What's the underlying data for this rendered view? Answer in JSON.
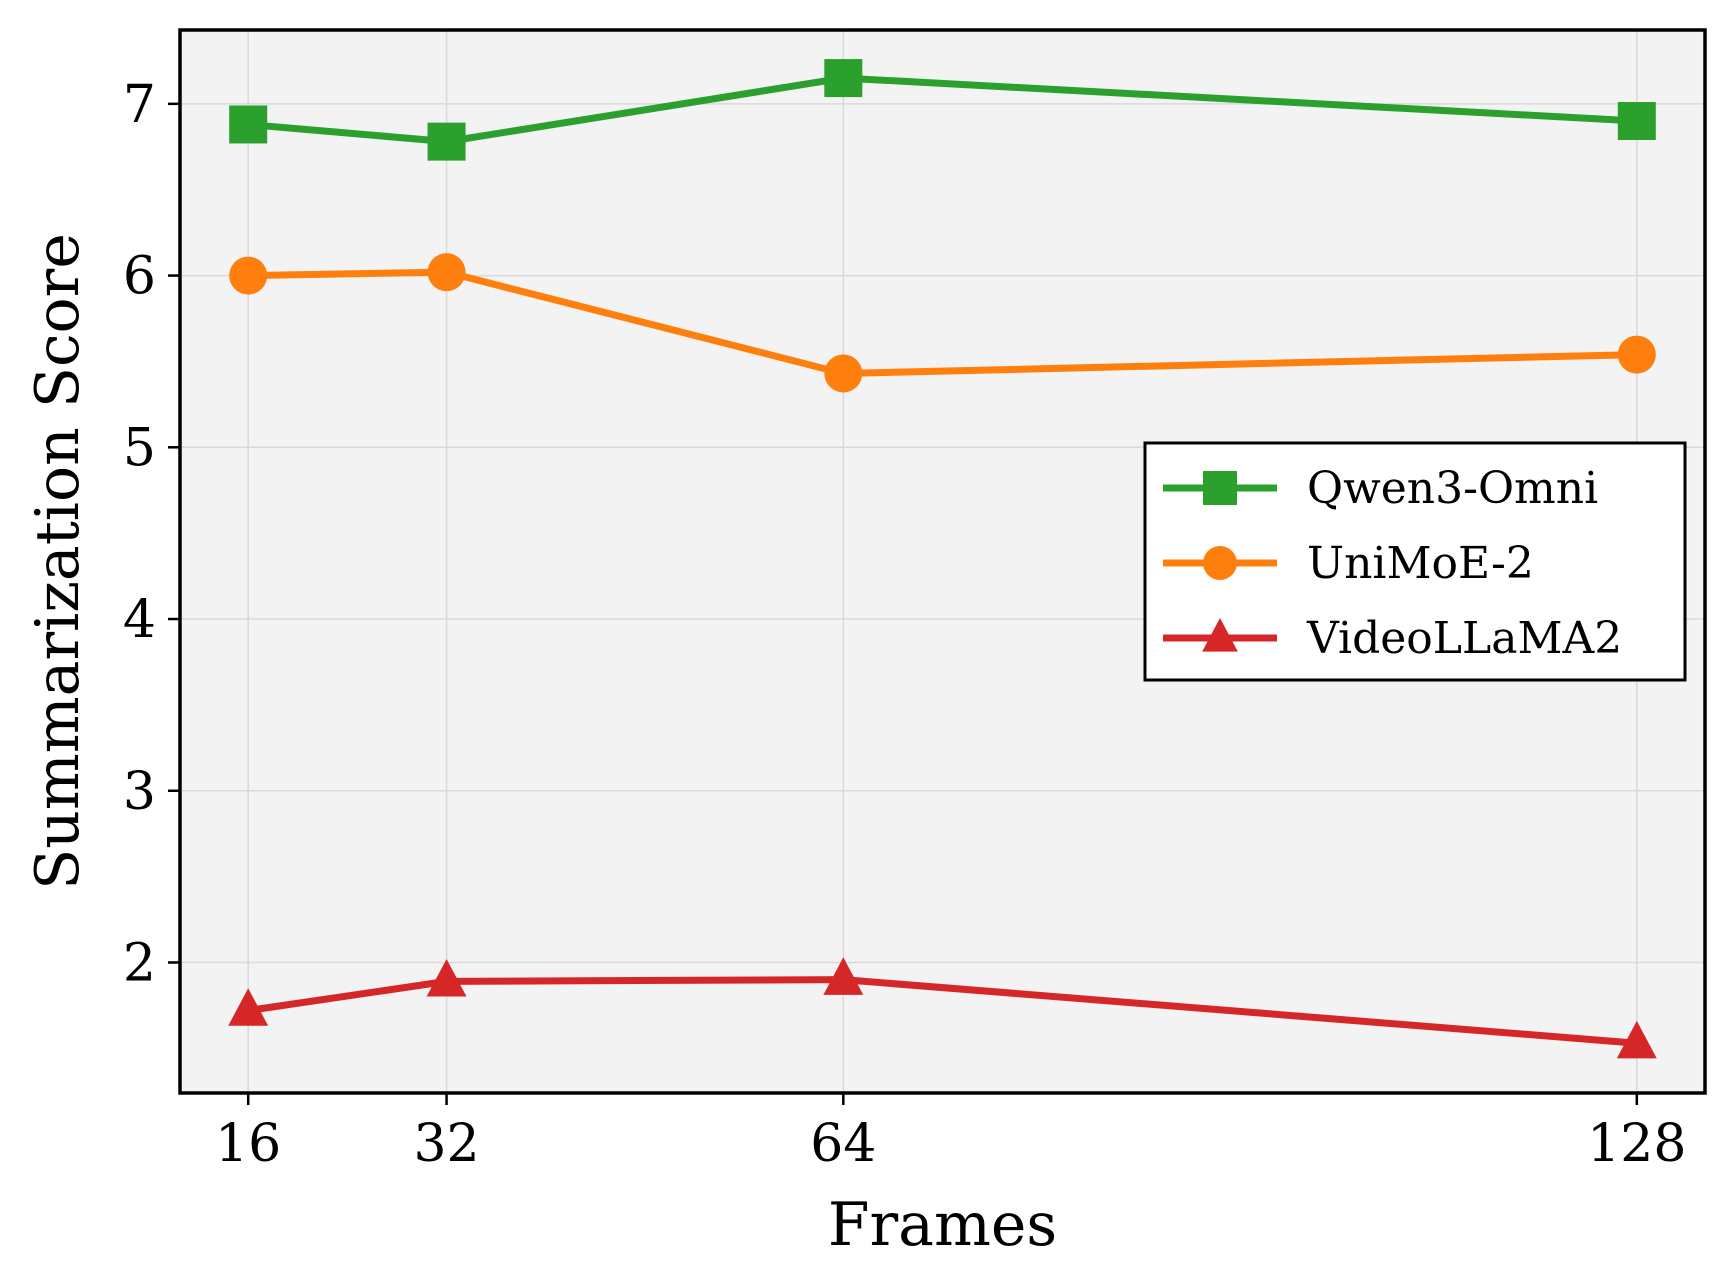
{
  "chart_data": {
    "type": "line",
    "title": "",
    "xlabel": "Frames",
    "ylabel": "Summarization Score",
    "x": [
      16,
      32,
      64,
      128
    ],
    "x_tick_labels": [
      "16",
      "32",
      "64",
      "128"
    ],
    "xlim": [
      10.5,
      133.5
    ],
    "y_ticks": [
      2,
      3,
      4,
      5,
      6,
      7
    ],
    "y_tick_labels": [
      "2",
      "3",
      "4",
      "5",
      "6",
      "7"
    ],
    "ylim": [
      1.24,
      7.43
    ],
    "grid": true,
    "legend_position": "center-right",
    "series": [
      {
        "name": "Qwen3-Omni",
        "values": [
          6.88,
          6.78,
          7.15,
          6.9
        ],
        "color": "#2ca02c",
        "marker": "square"
      },
      {
        "name": "UniMoE-2",
        "values": [
          6.0,
          6.02,
          5.43,
          5.54
        ],
        "color": "#ff7f0e",
        "marker": "circle"
      },
      {
        "name": "VideoLLaMA2",
        "values": [
          1.72,
          1.89,
          1.9,
          1.53
        ],
        "color": "#d62728",
        "marker": "triangle"
      }
    ],
    "plot_background": "#f3f3f3",
    "grid_color": "#d9d9d9"
  }
}
